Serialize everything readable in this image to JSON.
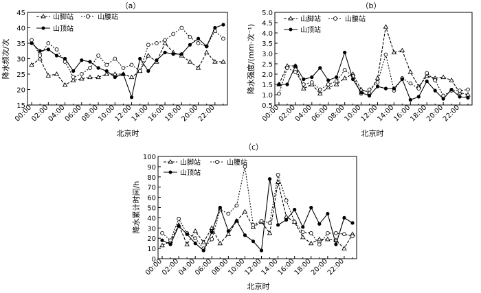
{
  "figure": {
    "panel_labels": [
      "（a）",
      "（b）",
      "（c）"
    ]
  },
  "chart_data": [
    {
      "type": "line",
      "panel": "（a）",
      "xlabel": "北京时",
      "ylabel": "降水频次/次",
      "ylim": [
        15,
        45
      ],
      "yticks": [
        15,
        20,
        25,
        30,
        35,
        40,
        45
      ],
      "x_tick_labels": [
        "00:00",
        "02:00",
        "04:00",
        "06:00",
        "08:00",
        "10:00",
        "12:00",
        "14:00",
        "16:00",
        "18:00",
        "20:00",
        "22:00"
      ],
      "legend": [
        "山脚站",
        "山腰站",
        "山顶站"
      ],
      "series": [
        {
          "name": "山脚站",
          "marker": "triangle",
          "dash": "4,2",
          "values": [
            28,
            30,
            24.5,
            25,
            21.5,
            23,
            23.5,
            24,
            24,
            25,
            25,
            25,
            24,
            26,
            31,
            29,
            35,
            32,
            31,
            29,
            27,
            32,
            29,
            29
          ]
        },
        {
          "name": "山腰站",
          "marker": "circle-open",
          "dash": "2,2",
          "values": [
            36,
            31,
            35,
            33,
            29,
            24,
            25,
            27,
            31,
            28,
            30,
            27,
            28,
            26,
            34.5,
            35,
            36,
            38,
            40,
            37,
            35,
            34,
            39,
            36.5
          ]
        },
        {
          "name": "山顶站",
          "marker": "circle-filled",
          "dash": "",
          "values": [
            35,
            32.5,
            33,
            31,
            30,
            26,
            29.5,
            29,
            27,
            26,
            24,
            25,
            17.5,
            30,
            26,
            29.5,
            32,
            31.5,
            31.5,
            34.5,
            36.5,
            34,
            40,
            41
          ]
        }
      ]
    },
    {
      "type": "line",
      "panel": "（b）",
      "xlabel": "北京时",
      "ylabel": "降水强度/(mm·次⁻¹)",
      "ylim": [
        0.5,
        5.0
      ],
      "yticks": [
        0.5,
        1.0,
        1.5,
        2.0,
        2.5,
        3.0,
        3.5,
        4.0,
        4.5,
        5.0
      ],
      "x_tick_labels": [
        "00:00",
        "02:00",
        "04:00",
        "06:00",
        "08:00",
        "10:00",
        "12:00",
        "14:00",
        "16:00",
        "18:00",
        "20:00",
        "22:00"
      ],
      "legend": [
        "山脚站",
        "山腰站",
        "山顶站"
      ],
      "series": [
        {
          "name": "山脚站",
          "marker": "triangle",
          "dash": "4,2",
          "values": [
            1.5,
            2.4,
            2.4,
            1.3,
            1.5,
            1.05,
            1.35,
            1.5,
            1.8,
            2.0,
            1.25,
            1.1,
            1.8,
            4.3,
            3.05,
            3.15,
            2.1,
            1.4,
            1.9,
            1.8,
            1.85,
            1.7,
            1.1,
            1.0
          ]
        },
        {
          "name": "山腰站",
          "marker": "circle-open",
          "dash": "2,2",
          "values": [
            1.05,
            2.3,
            2.1,
            1.5,
            1.6,
            1.25,
            1.5,
            1.65,
            2.2,
            1.9,
            1.05,
            1.25,
            1.6,
            2.95,
            1.2,
            1.8,
            1.55,
            1.3,
            2.05,
            1.7,
            0.95,
            1.2,
            1.2,
            1.25
          ]
        },
        {
          "name": "山顶站",
          "marker": "circle-filled",
          "dash": "",
          "values": [
            1.5,
            1.5,
            2.4,
            1.75,
            1.85,
            2.3,
            1.7,
            1.85,
            3.05,
            1.75,
            1.1,
            0.95,
            1.4,
            1.3,
            1.3,
            1.75,
            0.75,
            0.9,
            1.65,
            1.2,
            0.8,
            1.25,
            0.9,
            0.85
          ]
        }
      ]
    },
    {
      "type": "line",
      "panel": "（c）",
      "xlabel": "北京时",
      "ylabel": "降水累计时间/h",
      "ylim": [
        0,
        100
      ],
      "yticks": [
        0,
        10,
        20,
        30,
        40,
        50,
        60,
        70,
        80,
        90,
        100
      ],
      "x_tick_labels": [
        "00:00",
        "02:00",
        "04:00",
        "06:00",
        "08:00",
        "10:00",
        "12:00",
        "14:00",
        "16:00",
        "18:00",
        "20:00",
        "22:00"
      ],
      "legend": [
        "山脚站",
        "山腰站",
        "山顶站"
      ],
      "series": [
        {
          "name": "山脚站",
          "marker": "triangle",
          "dash": "4,2",
          "values": [
            13,
            17,
            33,
            14,
            27,
            16,
            30,
            15,
            24,
            37,
            46,
            31,
            36,
            25,
            75,
            41,
            36,
            21,
            15,
            19,
            19,
            18,
            10,
            24
          ]
        },
        {
          "name": "山腰站",
          "marker": "circle-open",
          "dash": "2,2",
          "values": [
            25,
            18,
            39,
            25,
            20,
            10,
            19,
            48,
            44,
            52,
            90,
            33,
            37,
            35,
            82,
            57,
            36,
            26,
            25,
            14,
            25,
            25,
            24,
            22
          ]
        },
        {
          "name": "山顶站",
          "marker": "circle-filled",
          "dash": "",
          "values": [
            18,
            14,
            32,
            24,
            15,
            8,
            26,
            50,
            27,
            37,
            23,
            17,
            8,
            78,
            33,
            38,
            48,
            31,
            50,
            34,
            44,
            14,
            40,
            35
          ]
        }
      ]
    }
  ]
}
